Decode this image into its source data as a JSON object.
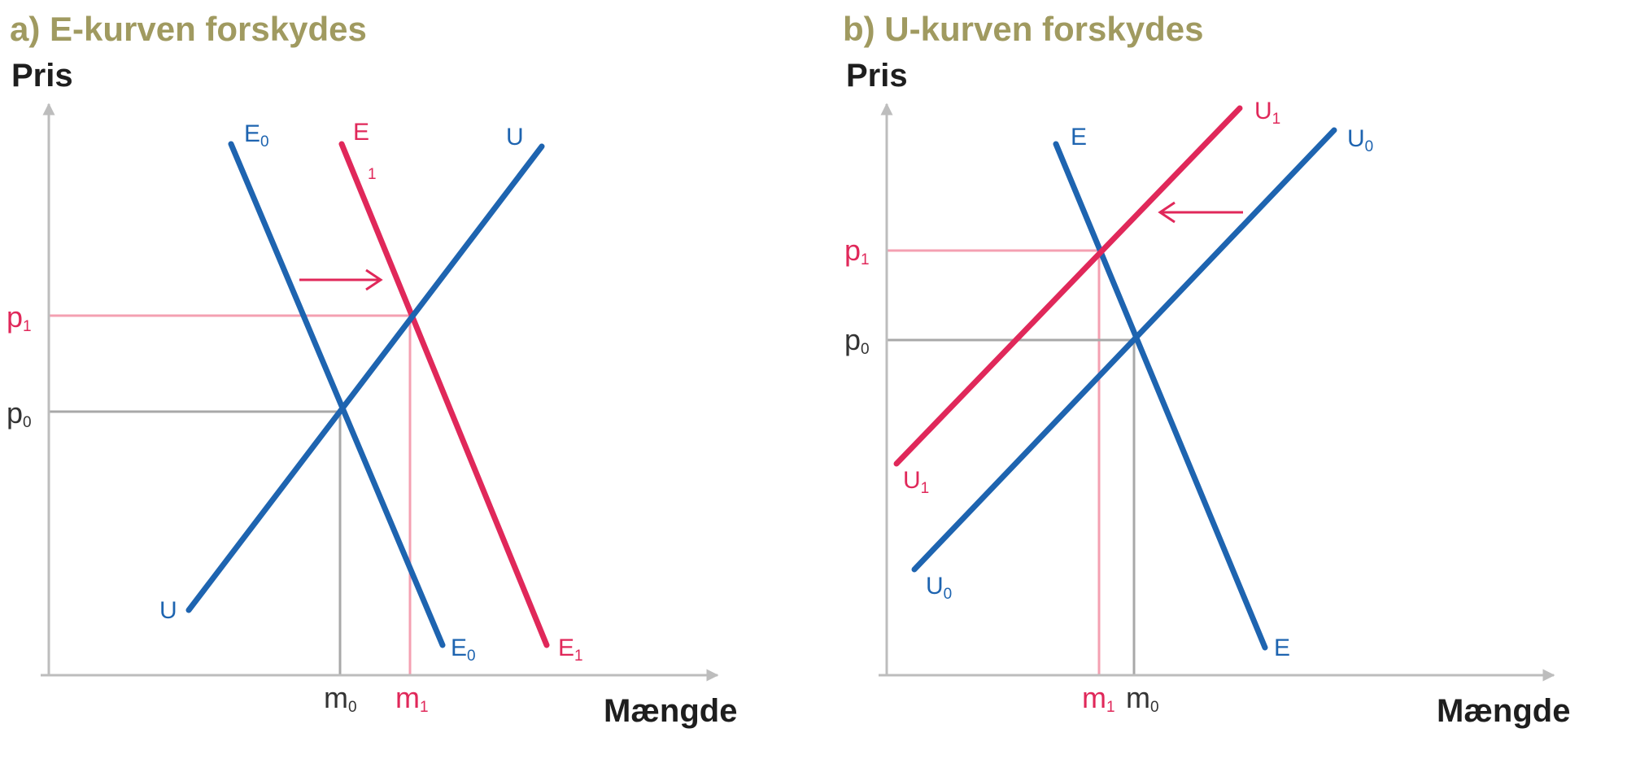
{
  "colors": {
    "blue": "#1e64b0",
    "red": "#e0285a",
    "pink_line": "#f4a0b2",
    "grey_line": "#a8a8a8",
    "axis": "#bdbdbd",
    "title": "#a09a60",
    "dark_text": "#1e1e1e"
  },
  "panel_a": {
    "title": "a) E-kurven forskydes",
    "y_axis_label": "Pris",
    "x_axis_label": "Mængde",
    "curves": {
      "E0": {
        "top_main": "E",
        "top_sub": "0",
        "bottom_main": "E",
        "bottom_sub": "0",
        "color": "blue"
      },
      "E1": {
        "top_main": "E",
        "top_sub": "1",
        "bottom_main": "E",
        "bottom_sub": "1",
        "color": "red"
      },
      "U": {
        "top_main": "U",
        "bottom_main": "U",
        "color": "blue"
      }
    },
    "ticks": {
      "p1": {
        "main": "p",
        "sub": "1"
      },
      "p0": {
        "main": "p",
        "sub": "0"
      },
      "m0": {
        "main": "m",
        "sub": "0"
      },
      "m1": {
        "main": "m",
        "sub": "1"
      }
    },
    "shift_arrow": "right"
  },
  "panel_b": {
    "title": "b) U-kurven forskydes",
    "y_axis_label": "Pris",
    "x_axis_label": "Mængde",
    "curves": {
      "E": {
        "top_main": "E",
        "bottom_main": "E",
        "color": "blue"
      },
      "U1": {
        "top_main": "U",
        "top_sub": "1",
        "bottom_main": "U",
        "bottom_sub": "1",
        "color": "red"
      },
      "U0": {
        "top_main": "U",
        "top_sub": "0",
        "bottom_main": "U",
        "bottom_sub": "0",
        "color": "blue"
      }
    },
    "ticks": {
      "p1": {
        "main": "p",
        "sub": "1"
      },
      "p0": {
        "main": "p",
        "sub": "0"
      },
      "m1": {
        "main": "m",
        "sub": "1"
      },
      "m0": {
        "main": "m",
        "sub": "0"
      }
    },
    "shift_arrow": "left"
  }
}
